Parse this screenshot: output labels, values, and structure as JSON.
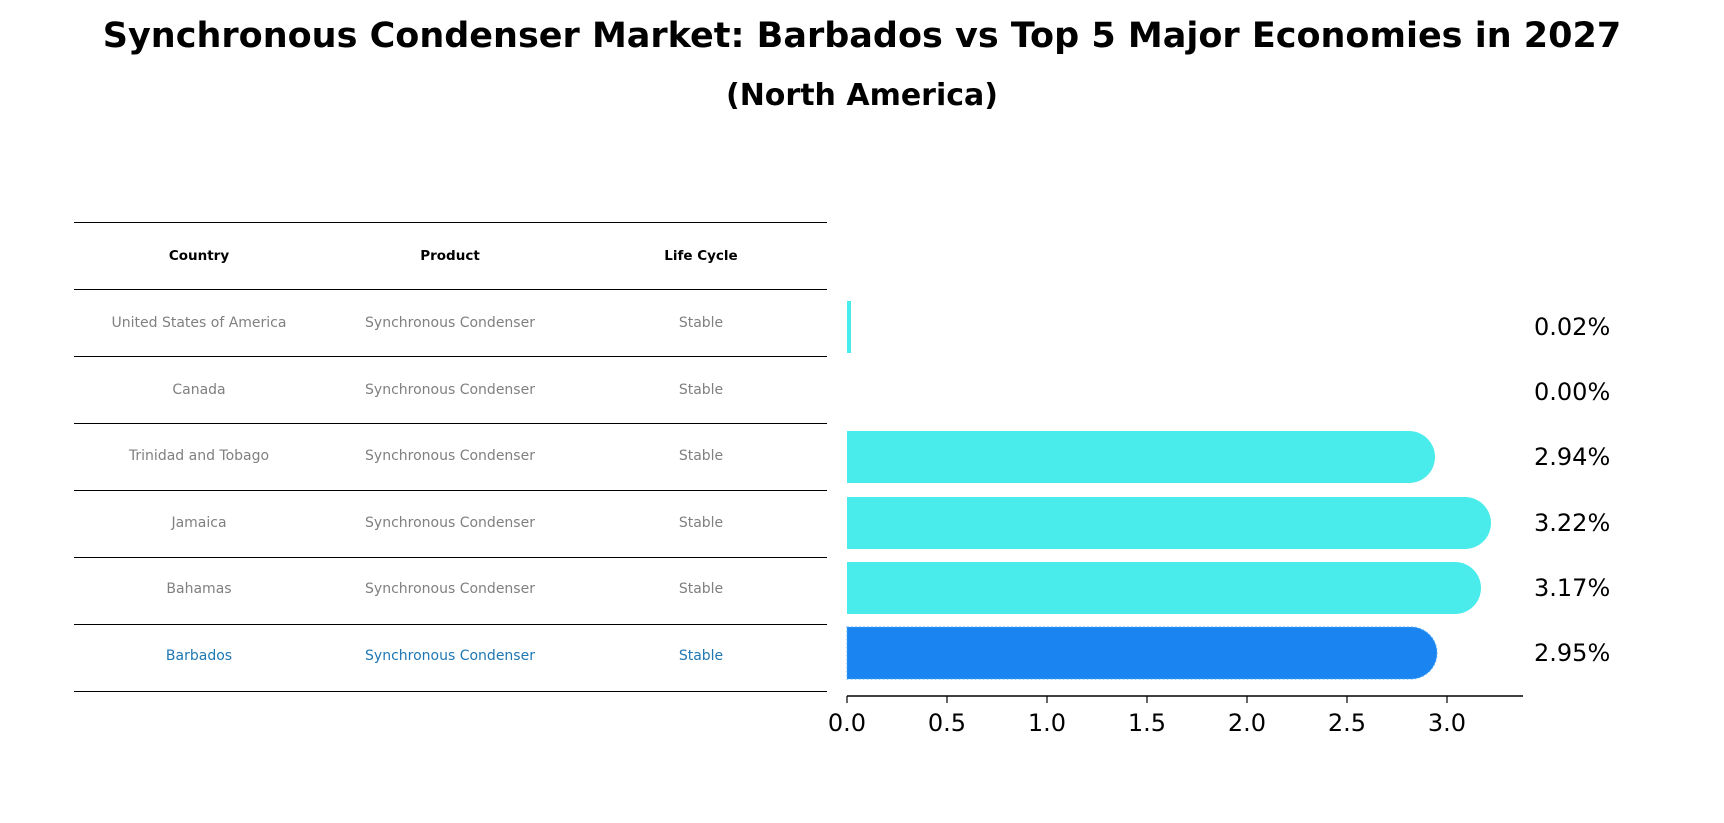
{
  "title": "Synchronous Condenser Market: Barbados vs Top 5 Major Economies in 2027",
  "subtitle": "(North America)",
  "table": {
    "headers": [
      "Country",
      "Product",
      "Life Cycle"
    ],
    "rows": [
      [
        "United States of America",
        "Synchronous Condenser",
        "Stable"
      ],
      [
        "Canada",
        "Synchronous Condenser",
        "Stable"
      ],
      [
        "Trinidad and Tobago",
        "Synchronous Condenser",
        "Stable"
      ],
      [
        "Jamaica",
        "Synchronous Condenser",
        "Stable"
      ],
      [
        "Bahamas",
        "Synchronous Condenser",
        "Stable"
      ],
      [
        "Barbados",
        "Synchronous Condenser",
        "Stable"
      ]
    ]
  },
  "colors": {
    "bar": "#4aeceb",
    "highlight_bar": "#1a85f0",
    "highlight_text": "#1f77b4",
    "row_text": "#808080"
  },
  "chart_data": {
    "type": "bar",
    "orientation": "horizontal",
    "categories": [
      "United States of America",
      "Canada",
      "Trinidad and Tobago",
      "Jamaica",
      "Bahamas",
      "Barbados"
    ],
    "values": [
      0.02,
      0.0,
      2.94,
      3.22,
      3.17,
      2.95
    ],
    "value_labels": [
      "0.02%",
      "0.00%",
      "2.94%",
      "3.22%",
      "3.17%",
      "2.95%"
    ],
    "highlight": "Barbados",
    "xlim": [
      0,
      3.38
    ],
    "xticks": [
      0.0,
      0.5,
      1.0,
      1.5,
      2.0,
      2.5,
      3.0
    ],
    "xtick_labels": [
      "0.0",
      "0.5",
      "1.0",
      "1.5",
      "2.0",
      "2.5",
      "3.0"
    ],
    "xlabel": "",
    "ylabel": "",
    "grid": false
  }
}
